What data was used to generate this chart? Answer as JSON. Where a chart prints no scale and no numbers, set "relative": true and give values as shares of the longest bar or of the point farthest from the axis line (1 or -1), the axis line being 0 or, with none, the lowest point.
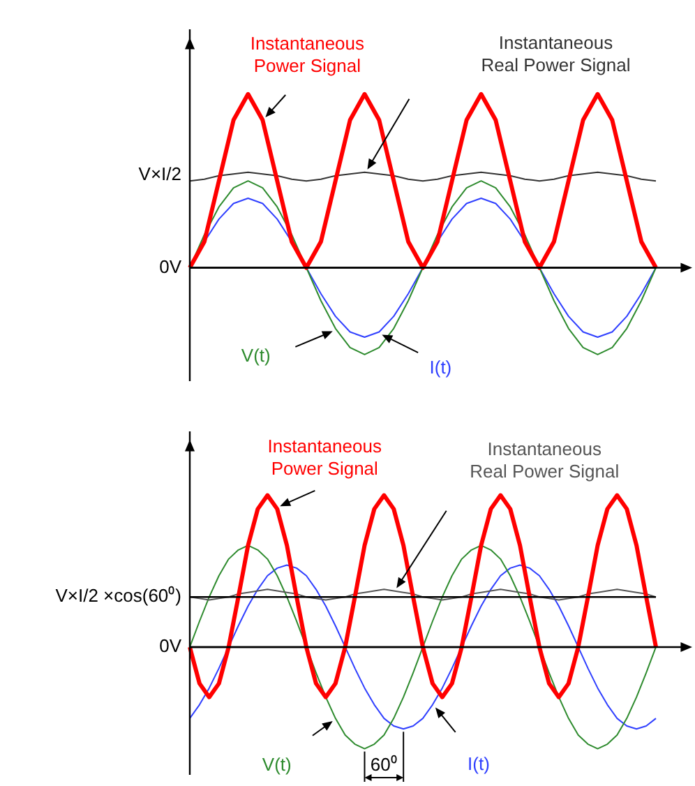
{
  "chart_data": [
    {
      "type": "line",
      "relative": true,
      "marker": "none",
      "categories": [
        null,
        null,
        null,
        null,
        null,
        null,
        null,
        null,
        null,
        null,
        null,
        null,
        null,
        null,
        null,
        null,
        null,
        null,
        null,
        null,
        null,
        null,
        null,
        null,
        null,
        null,
        null,
        null,
        null,
        null,
        null,
        null,
        null
      ],
      "series": [
        {
          "name": "Instantaneous Power Signal",
          "color": "#ff0000",
          "values": [
            0,
            0.15,
            0.5,
            0.85,
            1,
            0.85,
            0.5,
            0.15,
            0,
            0.15,
            0.5,
            0.85,
            1,
            0.85,
            0.5,
            0.15,
            0,
            0.15,
            0.5,
            0.85,
            1,
            0.85,
            0.5,
            0.15,
            0,
            0.15,
            0.5,
            0.85,
            1,
            0.85,
            0.5,
            0.15,
            0
          ]
        },
        {
          "name": "Instantaneous Real Power Signal",
          "color": "#333333",
          "values": [
            0.5,
            0.51,
            0.53,
            0.54,
            0.55,
            0.54,
            0.53,
            0.51,
            0.5,
            0.51,
            0.53,
            0.54,
            0.55,
            0.54,
            0.53,
            0.51,
            0.5,
            0.51,
            0.53,
            0.54,
            0.55,
            0.54,
            0.53,
            0.51,
            0.5,
            0.51,
            0.53,
            0.54,
            0.55,
            0.54,
            0.53,
            0.51,
            0.5
          ]
        },
        {
          "name": "V(t)",
          "color": "#2e8b2e",
          "values": [
            0,
            0.19,
            0.35,
            0.46,
            0.5,
            0.46,
            0.35,
            0.19,
            0,
            -0.19,
            -0.35,
            -0.46,
            -0.5,
            -0.46,
            -0.35,
            -0.19,
            0,
            0.19,
            0.35,
            0.46,
            0.5,
            0.46,
            0.35,
            0.19,
            0,
            -0.19,
            -0.35,
            -0.46,
            -0.5,
            -0.46,
            -0.35,
            -0.19,
            0
          ]
        },
        {
          "name": "I(t)",
          "color": "#2f3fff",
          "values": [
            0,
            0.15,
            0.28,
            0.37,
            0.4,
            0.37,
            0.28,
            0.15,
            0,
            -0.15,
            -0.28,
            -0.37,
            -0.4,
            -0.37,
            -0.28,
            -0.15,
            0,
            0.15,
            0.28,
            0.37,
            0.4,
            0.37,
            0.28,
            0.15,
            0,
            -0.15,
            -0.28,
            -0.37,
            -0.4,
            -0.37,
            -0.28,
            -0.15,
            0
          ]
        }
      ],
      "ref_lines": [
        {
          "axis": "y",
          "value": 0,
          "label": "0V"
        }
      ],
      "annotations": [
        "V×I/2"
      ]
    },
    {
      "type": "line",
      "relative": true,
      "marker": "none",
      "categories": [
        null,
        null,
        null,
        null,
        null,
        null,
        null,
        null,
        null,
        null,
        null,
        null,
        null,
        null,
        null,
        null,
        null,
        null,
        null,
        null,
        null,
        null,
        null,
        null,
        null,
        null,
        null,
        null,
        null,
        null,
        null,
        null,
        null,
        null,
        null,
        null,
        null,
        null,
        null,
        null,
        null,
        null,
        null,
        null,
        null,
        null,
        null,
        null,
        null
      ],
      "series": [
        {
          "name": "Instantaneous Power Signal",
          "color": "#ff0000",
          "values": [
            0,
            -0.24,
            -0.33,
            -0.24,
            0,
            0.33,
            0.67,
            0.91,
            1,
            0.91,
            0.67,
            0.33,
            0,
            -0.24,
            -0.33,
            -0.24,
            0,
            0.33,
            0.67,
            0.91,
            1,
            0.91,
            0.67,
            0.33,
            0,
            -0.24,
            -0.33,
            -0.24,
            0,
            0.33,
            0.67,
            0.91,
            1,
            0.91,
            0.67,
            0.33,
            0,
            -0.24,
            -0.33,
            -0.24,
            0,
            0.33,
            0.67,
            0.91,
            1,
            0.91,
            0.67,
            0.33,
            0
          ]
        },
        {
          "name": "Instantaneous Real Power Signal",
          "color": "#555555",
          "values": [
            0.33,
            0.32,
            0.31,
            0.32,
            0.33,
            0.35,
            0.36,
            0.37,
            0.38,
            0.37,
            0.36,
            0.35,
            0.33,
            0.32,
            0.31,
            0.32,
            0.33,
            0.35,
            0.36,
            0.37,
            0.38,
            0.37,
            0.36,
            0.35,
            0.33,
            0.32,
            0.31,
            0.32,
            0.33,
            0.35,
            0.36,
            0.37,
            0.38,
            0.37,
            0.36,
            0.35,
            0.33,
            0.32,
            0.31,
            0.32,
            0.33,
            0.35,
            0.36,
            0.37,
            0.38,
            0.37,
            0.36,
            0.35,
            0.33
          ]
        },
        {
          "name": "V(t)",
          "color": "#2e8b2e",
          "values": [
            0,
            0.17,
            0.33,
            0.47,
            0.58,
            0.64,
            0.67,
            0.64,
            0.58,
            0.47,
            0.33,
            0.17,
            0,
            -0.17,
            -0.33,
            -0.47,
            -0.58,
            -0.64,
            -0.67,
            -0.64,
            -0.58,
            -0.47,
            -0.33,
            -0.17,
            0,
            0.17,
            0.33,
            0.47,
            0.58,
            0.64,
            0.67,
            0.64,
            0.58,
            0.47,
            0.33,
            0.17,
            0,
            -0.17,
            -0.33,
            -0.47,
            -0.58,
            -0.64,
            -0.67,
            -0.64,
            -0.58,
            -0.47,
            -0.33,
            -0.17,
            0
          ]
        },
        {
          "name": "I(t)",
          "color": "#2f3fff",
          "values": [
            -0.47,
            -0.38,
            -0.27,
            -0.14,
            0,
            0.14,
            0.27,
            0.38,
            0.47,
            0.52,
            0.54,
            0.52,
            0.47,
            0.38,
            0.27,
            0.14,
            0,
            -0.14,
            -0.27,
            -0.38,
            -0.47,
            -0.52,
            -0.54,
            -0.52,
            -0.47,
            -0.38,
            -0.27,
            -0.14,
            0,
            0.14,
            0.27,
            0.38,
            0.47,
            0.52,
            0.54,
            0.52,
            0.47,
            0.38,
            0.27,
            0.14,
            0,
            -0.14,
            -0.27,
            -0.38,
            -0.47,
            -0.52,
            -0.54,
            -0.52,
            -0.47
          ]
        }
      ],
      "ref_lines": [
        {
          "axis": "y",
          "value": 0.33,
          "label": "V×I/2 ×cos(60⁰)",
          "color": "#000000"
        },
        {
          "axis": "y",
          "value": 0,
          "label": "0V"
        }
      ],
      "annotations": [
        "60⁰"
      ]
    }
  ]
}
